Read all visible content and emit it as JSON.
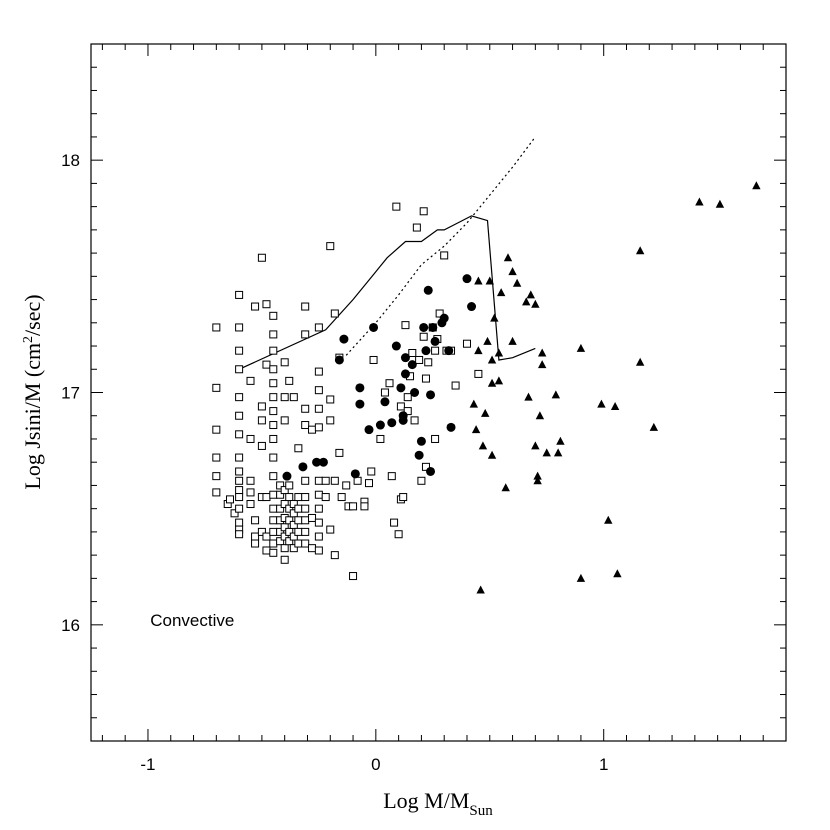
{
  "chart_data": {
    "type": "scatter",
    "title": "",
    "xlabel": {
      "main": "Log  M/M",
      "sub": "Sun"
    },
    "ylabel": {
      "pre": "Log Jsini/M (cm",
      "sup": "2",
      "post": "/sec)"
    },
    "xlim": [
      -1.25,
      1.8
    ],
    "ylim": [
      15.5,
      18.5
    ],
    "x_ticks": [
      -1,
      0,
      1
    ],
    "y_ticks": [
      16,
      17,
      18
    ],
    "x_tick_labels": [
      "-1",
      "0",
      "1"
    ],
    "y_tick_labels": [
      "16",
      "17",
      "18"
    ],
    "grid": false,
    "annotations": [
      {
        "text": "Convective",
        "x": -0.99,
        "y": 16.02
      }
    ],
    "series": [
      {
        "marker": "open-square",
        "points": [
          [
            -0.7,
            17.28
          ],
          [
            -0.7,
            17.02
          ],
          [
            -0.7,
            16.84
          ],
          [
            -0.7,
            16.72
          ],
          [
            -0.7,
            16.64
          ],
          [
            -0.7,
            16.57
          ],
          [
            -0.65,
            16.52
          ],
          [
            -0.64,
            16.54
          ],
          [
            -0.62,
            16.48
          ],
          [
            -0.6,
            17.42
          ],
          [
            -0.6,
            17.28
          ],
          [
            -0.6,
            17.18
          ],
          [
            -0.6,
            17.1
          ],
          [
            -0.6,
            16.98
          ],
          [
            -0.6,
            16.9
          ],
          [
            -0.6,
            16.82
          ],
          [
            -0.6,
            16.72
          ],
          [
            -0.6,
            16.66
          ],
          [
            -0.6,
            16.62
          ],
          [
            -0.6,
            16.58
          ],
          [
            -0.6,
            16.55
          ],
          [
            -0.6,
            16.5
          ],
          [
            -0.6,
            16.44
          ],
          [
            -0.6,
            16.41
          ],
          [
            -0.6,
            16.39
          ],
          [
            -0.55,
            17.05
          ],
          [
            -0.55,
            16.8
          ],
          [
            -0.55,
            16.62
          ],
          [
            -0.55,
            16.57
          ],
          [
            -0.55,
            16.52
          ],
          [
            -0.53,
            17.37
          ],
          [
            -0.53,
            16.45
          ],
          [
            -0.53,
            16.38
          ],
          [
            -0.53,
            16.35
          ],
          [
            -0.5,
            17.58
          ],
          [
            -0.5,
            16.94
          ],
          [
            -0.5,
            16.88
          ],
          [
            -0.5,
            16.77
          ],
          [
            -0.5,
            16.55
          ],
          [
            -0.5,
            16.4
          ],
          [
            -0.48,
            17.38
          ],
          [
            -0.48,
            17.12
          ],
          [
            -0.48,
            16.55
          ],
          [
            -0.48,
            16.38
          ],
          [
            -0.48,
            16.32
          ],
          [
            -0.45,
            17.33
          ],
          [
            -0.45,
            17.25
          ],
          [
            -0.45,
            17.18
          ],
          [
            -0.45,
            17.1
          ],
          [
            -0.45,
            17.04
          ],
          [
            -0.45,
            16.98
          ],
          [
            -0.45,
            16.92
          ],
          [
            -0.45,
            16.86
          ],
          [
            -0.45,
            16.8
          ],
          [
            -0.45,
            16.72
          ],
          [
            -0.45,
            16.64
          ],
          [
            -0.45,
            16.56
          ],
          [
            -0.45,
            16.5
          ],
          [
            -0.45,
            16.45
          ],
          [
            -0.45,
            16.4
          ],
          [
            -0.45,
            16.35
          ],
          [
            -0.45,
            16.31
          ],
          [
            -0.42,
            16.6
          ],
          [
            -0.42,
            16.56
          ],
          [
            -0.42,
            16.5
          ],
          [
            -0.42,
            16.45
          ],
          [
            -0.42,
            16.4
          ],
          [
            -0.42,
            16.36
          ],
          [
            -0.4,
            17.13
          ],
          [
            -0.4,
            16.98
          ],
          [
            -0.4,
            16.88
          ],
          [
            -0.4,
            16.58
          ],
          [
            -0.4,
            16.52
          ],
          [
            -0.4,
            16.46
          ],
          [
            -0.4,
            16.42
          ],
          [
            -0.4,
            16.38
          ],
          [
            -0.4,
            16.33
          ],
          [
            -0.4,
            16.28
          ],
          [
            -0.38,
            17.05
          ],
          [
            -0.38,
            16.6
          ],
          [
            -0.38,
            16.55
          ],
          [
            -0.38,
            16.5
          ],
          [
            -0.38,
            16.45
          ],
          [
            -0.38,
            16.4
          ],
          [
            -0.38,
            16.36
          ],
          [
            -0.36,
            16.98
          ],
          [
            -0.36,
            16.52
          ],
          [
            -0.36,
            16.48
          ],
          [
            -0.36,
            16.43
          ],
          [
            -0.36,
            16.38
          ],
          [
            -0.36,
            16.33
          ],
          [
            -0.34,
            16.76
          ],
          [
            -0.34,
            16.55
          ],
          [
            -0.34,
            16.5
          ],
          [
            -0.34,
            16.45
          ],
          [
            -0.34,
            16.4
          ],
          [
            -0.34,
            16.35
          ],
          [
            -0.31,
            17.37
          ],
          [
            -0.31,
            17.25
          ],
          [
            -0.31,
            16.93
          ],
          [
            -0.31,
            16.86
          ],
          [
            -0.31,
            16.62
          ],
          [
            -0.31,
            16.55
          ],
          [
            -0.31,
            16.5
          ],
          [
            -0.31,
            16.45
          ],
          [
            -0.31,
            16.4
          ],
          [
            -0.31,
            16.35
          ],
          [
            -0.28,
            16.84
          ],
          [
            -0.28,
            16.46
          ],
          [
            -0.28,
            16.33
          ],
          [
            -0.25,
            17.28
          ],
          [
            -0.25,
            17.09
          ],
          [
            -0.25,
            17.01
          ],
          [
            -0.25,
            16.93
          ],
          [
            -0.25,
            16.85
          ],
          [
            -0.25,
            16.62
          ],
          [
            -0.25,
            16.56
          ],
          [
            -0.25,
            16.5
          ],
          [
            -0.25,
            16.44
          ],
          [
            -0.25,
            16.38
          ],
          [
            -0.25,
            16.32
          ],
          [
            -0.22,
            16.62
          ],
          [
            -0.22,
            16.55
          ],
          [
            -0.2,
            17.63
          ],
          [
            -0.2,
            16.97
          ],
          [
            -0.2,
            16.88
          ],
          [
            -0.2,
            16.41
          ],
          [
            -0.18,
            17.34
          ],
          [
            -0.18,
            16.62
          ],
          [
            -0.18,
            16.3
          ],
          [
            -0.16,
            17.15
          ],
          [
            -0.16,
            16.74
          ],
          [
            -0.15,
            16.55
          ],
          [
            -0.13,
            16.6
          ],
          [
            -0.12,
            16.51
          ],
          [
            -0.1,
            16.21
          ],
          [
            -0.1,
            16.51
          ],
          [
            -0.08,
            16.62
          ],
          [
            -0.05,
            16.53
          ],
          [
            -0.05,
            16.51
          ],
          [
            -0.03,
            16.61
          ],
          [
            -0.02,
            16.66
          ],
          [
            -0.01,
            17.14
          ],
          [
            0.02,
            16.8
          ],
          [
            0.04,
            17.0
          ],
          [
            0.06,
            17.04
          ],
          [
            0.07,
            16.64
          ],
          [
            0.08,
            16.44
          ],
          [
            0.09,
            17.8
          ],
          [
            0.1,
            16.39
          ],
          [
            0.11,
            16.94
          ],
          [
            0.11,
            16.54
          ],
          [
            0.12,
            16.55
          ],
          [
            0.13,
            17.29
          ],
          [
            0.14,
            16.98
          ],
          [
            0.14,
            16.92
          ],
          [
            0.15,
            17.07
          ],
          [
            0.16,
            17.17
          ],
          [
            0.17,
            16.88
          ],
          [
            0.18,
            17.71
          ],
          [
            0.19,
            17.14
          ],
          [
            0.2,
            16.62
          ],
          [
            0.21,
            17.78
          ],
          [
            0.21,
            17.24
          ],
          [
            0.22,
            17.06
          ],
          [
            0.22,
            16.68
          ],
          [
            0.23,
            17.13
          ],
          [
            0.25,
            17.28
          ],
          [
            0.26,
            17.18
          ],
          [
            0.26,
            16.8
          ],
          [
            0.27,
            17.23
          ],
          [
            0.28,
            17.34
          ],
          [
            0.3,
            17.59
          ],
          [
            0.31,
            17.18
          ],
          [
            0.33,
            17.18
          ],
          [
            0.35,
            17.03
          ],
          [
            0.4,
            17.21
          ],
          [
            0.45,
            17.08
          ]
        ]
      },
      {
        "marker": "filled-circle",
        "points": [
          [
            -0.39,
            16.64
          ],
          [
            -0.32,
            16.68
          ],
          [
            -0.26,
            16.7
          ],
          [
            -0.23,
            16.7
          ],
          [
            -0.16,
            17.14
          ],
          [
            -0.14,
            17.23
          ],
          [
            -0.09,
            16.65
          ],
          [
            -0.07,
            17.02
          ],
          [
            -0.07,
            16.95
          ],
          [
            -0.03,
            16.84
          ],
          [
            -0.01,
            17.28
          ],
          [
            0.02,
            16.86
          ],
          [
            0.04,
            16.96
          ],
          [
            0.07,
            16.87
          ],
          [
            0.09,
            17.2
          ],
          [
            0.11,
            17.02
          ],
          [
            0.12,
            16.9
          ],
          [
            0.12,
            16.88
          ],
          [
            0.13,
            17.15
          ],
          [
            0.13,
            17.08
          ],
          [
            0.16,
            17.12
          ],
          [
            0.17,
            17.0
          ],
          [
            0.19,
            16.73
          ],
          [
            0.2,
            16.79
          ],
          [
            0.21,
            17.28
          ],
          [
            0.22,
            17.18
          ],
          [
            0.23,
            17.44
          ],
          [
            0.24,
            16.66
          ],
          [
            0.24,
            16.99
          ],
          [
            0.25,
            17.28
          ],
          [
            0.26,
            17.22
          ],
          [
            0.29,
            17.3
          ],
          [
            0.3,
            17.32
          ],
          [
            0.32,
            17.18
          ],
          [
            0.33,
            16.85
          ],
          [
            0.4,
            17.49
          ],
          [
            0.42,
            17.37
          ]
        ]
      },
      {
        "marker": "filled-triangle",
        "points": [
          [
            0.43,
            16.95
          ],
          [
            0.44,
            16.84
          ],
          [
            0.45,
            17.18
          ],
          [
            0.45,
            17.48
          ],
          [
            0.46,
            16.15
          ],
          [
            0.47,
            16.77
          ],
          [
            0.48,
            16.91
          ],
          [
            0.49,
            17.22
          ],
          [
            0.5,
            17.48
          ],
          [
            0.51,
            17.14
          ],
          [
            0.51,
            17.04
          ],
          [
            0.51,
            16.73
          ],
          [
            0.52,
            17.32
          ],
          [
            0.54,
            17.17
          ],
          [
            0.54,
            17.05
          ],
          [
            0.55,
            17.43
          ],
          [
            0.57,
            16.59
          ],
          [
            0.58,
            17.58
          ],
          [
            0.6,
            17.52
          ],
          [
            0.6,
            17.22
          ],
          [
            0.62,
            17.47
          ],
          [
            0.66,
            17.39
          ],
          [
            0.67,
            16.98
          ],
          [
            0.68,
            17.42
          ],
          [
            0.7,
            16.77
          ],
          [
            0.7,
            17.38
          ],
          [
            0.71,
            16.64
          ],
          [
            0.71,
            16.62
          ],
          [
            0.72,
            16.9
          ],
          [
            0.73,
            17.17
          ],
          [
            0.73,
            17.12
          ],
          [
            0.75,
            16.74
          ],
          [
            0.79,
            16.99
          ],
          [
            0.8,
            16.74
          ],
          [
            0.81,
            16.79
          ],
          [
            0.9,
            17.19
          ],
          [
            0.9,
            16.2
          ],
          [
            0.99,
            16.95
          ],
          [
            1.02,
            16.45
          ],
          [
            1.05,
            16.94
          ],
          [
            1.06,
            16.22
          ],
          [
            1.16,
            17.61
          ],
          [
            1.16,
            17.13
          ],
          [
            1.22,
            16.85
          ],
          [
            1.42,
            17.82
          ],
          [
            1.51,
            17.81
          ],
          [
            1.67,
            17.89
          ]
        ]
      },
      {
        "line_style": "solid",
        "points": [
          [
            -0.6,
            17.1
          ],
          [
            -0.22,
            17.27
          ],
          [
            -0.1,
            17.4
          ],
          [
            0.0,
            17.52
          ],
          [
            0.05,
            17.58
          ],
          [
            0.13,
            17.65
          ],
          [
            0.2,
            17.65
          ],
          [
            0.27,
            17.7
          ],
          [
            0.3,
            17.7
          ],
          [
            0.36,
            17.73
          ],
          [
            0.42,
            17.76
          ],
          [
            0.49,
            17.74
          ],
          [
            0.54,
            17.14
          ],
          [
            0.6,
            17.15
          ],
          [
            0.7,
            17.19
          ]
        ]
      },
      {
        "line_style": "dotted",
        "points": [
          [
            -0.13,
            17.16
          ],
          [
            0.0,
            17.3
          ],
          [
            0.1,
            17.42
          ],
          [
            0.2,
            17.55
          ],
          [
            0.3,
            17.63
          ],
          [
            0.4,
            17.73
          ],
          [
            0.5,
            17.85
          ],
          [
            0.6,
            17.97
          ],
          [
            0.7,
            18.1
          ]
        ]
      }
    ]
  }
}
